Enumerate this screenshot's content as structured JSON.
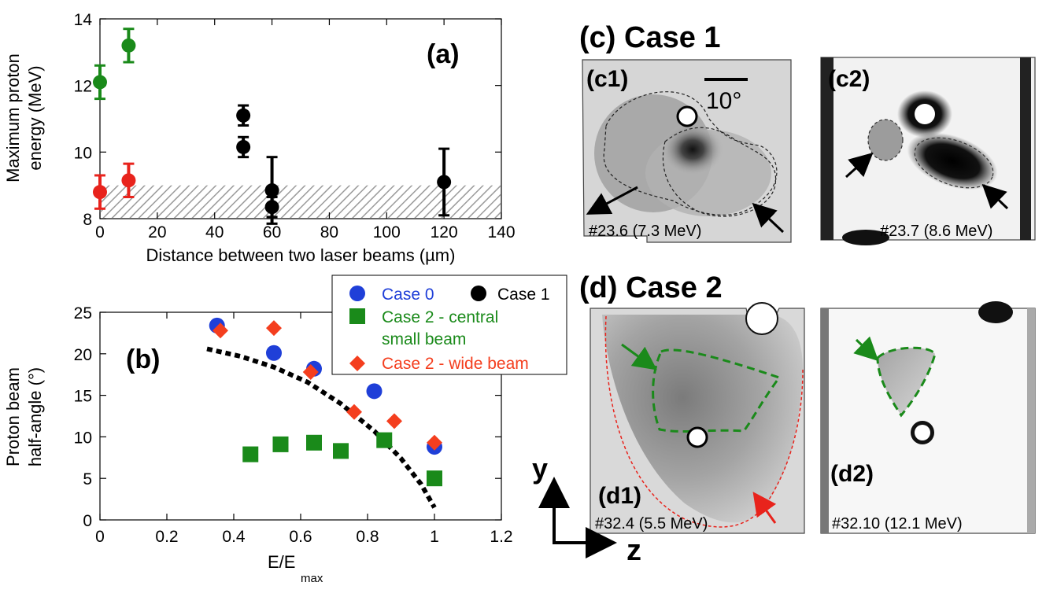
{
  "panel_a": {
    "label": "(a)",
    "ylabel_line1": "Maximum proton",
    "ylabel_line2": "energy (MeV)",
    "xlabel": "Distance between two laser beams (µm)",
    "xticks": [
      "0",
      "20",
      "40",
      "60",
      "80",
      "100",
      "120",
      "140"
    ],
    "yticks": [
      "8",
      "10",
      "12",
      "14"
    ]
  },
  "panel_b": {
    "label": "(b)",
    "ylabel_line1": "Proton beam",
    "ylabel_line2": "half-angle (°)",
    "xlabel_main": "E/E",
    "xlabel_sub": "max",
    "xticks": [
      "0",
      "0.2",
      "0.4",
      "0.6",
      "0.8",
      "1",
      "1.2"
    ],
    "yticks": [
      "0",
      "5",
      "10",
      "15",
      "20",
      "25"
    ],
    "legend": {
      "case0": "Case 0",
      "case1": "Case 1",
      "case2_central_l1": "Case 2 - central",
      "case2_central_l2": "small beam",
      "case2_wide": "Case 2 - wide beam"
    }
  },
  "panel_c": {
    "title": "(c) Case 1",
    "c1_label": "(c1)",
    "c2_label": "(c2)",
    "scale_label": "10°",
    "c1_caption": "#23.6 (7.3 MeV)",
    "c2_caption": "#23.7 (8.6 MeV)"
  },
  "panel_d": {
    "title": "(d) Case 2",
    "d1_label": "(d1)",
    "d2_label": "(d2)",
    "d1_caption": "#32.4 (5.5 MeV)",
    "d2_caption": "#32.10 (12.1 MeV)",
    "axis_y": "y",
    "axis_z": "z"
  },
  "colors": {
    "green": "#1a8a1a",
    "red": "#e8231c",
    "blue": "#1f3fd8",
    "black": "#000000",
    "orange_red": "#f43e1e"
  },
  "chart_data": [
    {
      "type": "scatter",
      "xlabel": "Distance between two laser beams (µm)",
      "ylabel": "Maximum proton energy (MeV)",
      "xlim": [
        0,
        140
      ],
      "ylim": [
        8,
        14
      ],
      "shaded_band": [
        8,
        9
      ],
      "series": [
        {
          "color": "#1a8a1a",
          "points": [
            {
              "x": 0,
              "y": 12.1,
              "err": 0.5
            },
            {
              "x": 10,
              "y": 13.2,
              "err": 0.5
            }
          ]
        },
        {
          "color": "#e8231c",
          "points": [
            {
              "x": 0,
              "y": 8.8,
              "err": 0.5
            },
            {
              "x": 10,
              "y": 9.15,
              "err": 0.5
            }
          ]
        },
        {
          "color": "#000000",
          "points": [
            {
              "x": 50,
              "y": 11.1,
              "err": 0.3
            },
            {
              "x": 50,
              "y": 10.15,
              "err": 0.3
            },
            {
              "x": 60,
              "y": 8.85,
              "err": 1.0
            },
            {
              "x": 60,
              "y": 8.35,
              "err": 0.3
            },
            {
              "x": 120,
              "y": 9.1,
              "err": 1.0
            }
          ]
        }
      ]
    },
    {
      "type": "scatter",
      "xlabel": "E/Emax",
      "ylabel": "Proton beam half-angle (°)",
      "xlim": [
        0,
        1.2
      ],
      "ylim": [
        0,
        25
      ],
      "series": [
        {
          "name": "Case 0",
          "color": "#1f3fd8",
          "marker": "circle",
          "points": [
            [
              0.35,
              23.4
            ],
            [
              0.52,
              20.1
            ],
            [
              0.64,
              18.2
            ],
            [
              0.82,
              15.5
            ],
            [
              1.0,
              8.8
            ]
          ]
        },
        {
          "name": "Case 2 - central small beam",
          "color": "#1a8a1a",
          "marker": "square",
          "points": [
            [
              0.45,
              7.9
            ],
            [
              0.54,
              9.1
            ],
            [
              0.64,
              9.3
            ],
            [
              0.72,
              8.3
            ],
            [
              0.85,
              9.6
            ],
            [
              1.0,
              5.0
            ]
          ]
        },
        {
          "name": "Case 2 - wide beam",
          "color": "#f43e1e",
          "marker": "diamond",
          "points": [
            [
              0.36,
              22.8
            ],
            [
              0.52,
              23.1
            ],
            [
              0.63,
              17.8
            ],
            [
              0.76,
              13.0
            ],
            [
              0.88,
              11.9
            ],
            [
              1.0,
              9.3
            ]
          ]
        },
        {
          "name": "fit",
          "style": "dotted",
          "color": "#000000",
          "points": [
            [
              0.32,
              20.6
            ],
            [
              0.42,
              19.7
            ],
            [
              0.52,
              18.4
            ],
            [
              0.62,
              16.6
            ],
            [
              0.72,
              14.0
            ],
            [
              0.82,
              10.7
            ],
            [
              0.9,
              7.4
            ],
            [
              0.96,
              4.3
            ],
            [
              1.0,
              1.5
            ]
          ]
        }
      ]
    }
  ]
}
